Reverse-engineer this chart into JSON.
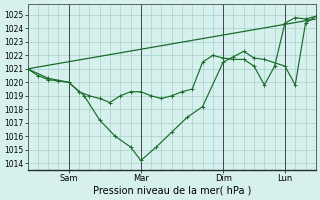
{
  "xlabel": "Pression niveau de la mer( hPa )",
  "bg_color": "#d6f0ee",
  "plot_bg_color": "#d6f0ee",
  "grid_color": "#a8cfc8",
  "line_color": "#1a6b2a",
  "ylim": [
    1013.5,
    1025.8
  ],
  "yticks": [
    1014,
    1015,
    1016,
    1017,
    1018,
    1019,
    1020,
    1021,
    1022,
    1023,
    1024,
    1025
  ],
  "vline_color": "#444455",
  "vline_positions": [
    8,
    22,
    38,
    50
  ],
  "vline_labels": [
    "Sam",
    "Mar",
    "Dim",
    "Lun"
  ],
  "series1_x": [
    0,
    2,
    4,
    6,
    8,
    10,
    12,
    14,
    16,
    18,
    20,
    22,
    24,
    26,
    28,
    30,
    32,
    34,
    36,
    38,
    40,
    42,
    44,
    46,
    48,
    50,
    52,
    54,
    56
  ],
  "series1_y": [
    1021.0,
    1020.5,
    1020.2,
    1020.1,
    1020.0,
    1019.3,
    1019.0,
    1018.8,
    1018.5,
    1019.0,
    1019.3,
    1019.3,
    1019.0,
    1018.8,
    1019.0,
    1019.3,
    1019.5,
    1021.5,
    1022.0,
    1021.8,
    1021.7,
    1021.7,
    1021.2,
    1019.8,
    1021.2,
    1024.4,
    1024.8,
    1024.7,
    1024.9
  ],
  "series2_x": [
    0,
    4,
    8,
    11,
    14,
    17,
    20,
    22,
    25,
    28,
    31,
    34,
    38,
    40,
    42,
    44,
    46,
    50,
    52,
    54,
    56
  ],
  "series2_y": [
    1021.0,
    1020.3,
    1020.0,
    1019.0,
    1017.2,
    1016.0,
    1015.2,
    1014.2,
    1015.2,
    1016.3,
    1017.4,
    1018.2,
    1021.5,
    1021.9,
    1022.3,
    1021.8,
    1021.7,
    1021.2,
    1019.8,
    1024.4,
    1024.9
  ],
  "series3_x": [
    0,
    56
  ],
  "series3_y": [
    1021.0,
    1024.7
  ],
  "xlim": [
    0,
    56
  ]
}
